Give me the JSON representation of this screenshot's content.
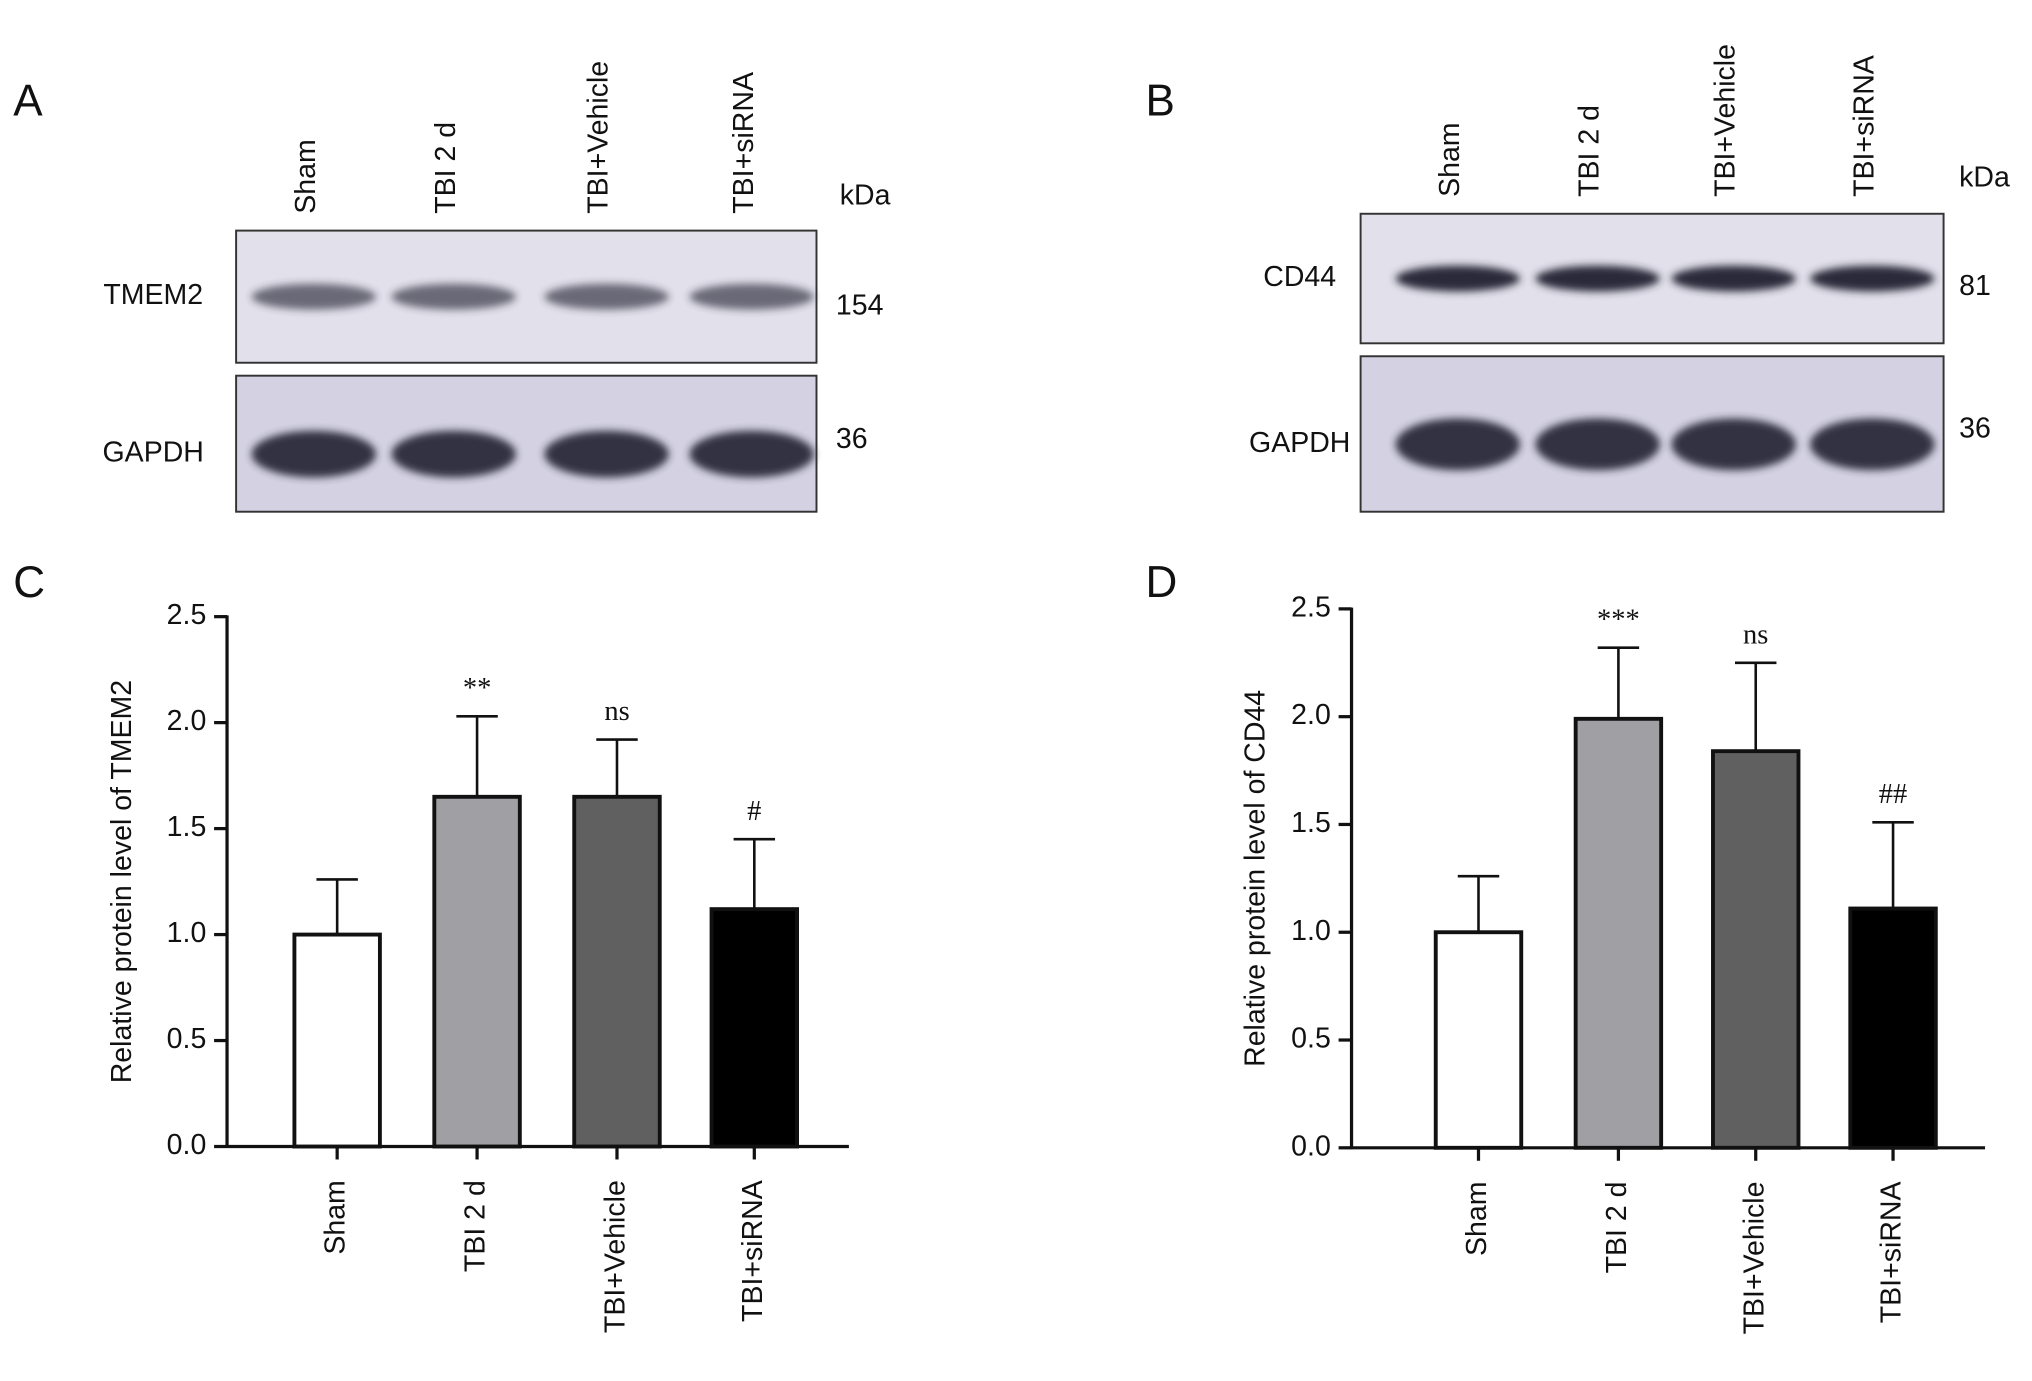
{
  "blots": [
    {
      "panel": "A",
      "lanes": [
        "Sham",
        "TBI 2 d",
        "TBI+Vehicle",
        "TBI+siRNA"
      ],
      "unit": "kDa",
      "rows": [
        {
          "protein": "TMEM2",
          "kda": 154
        },
        {
          "protein": "GAPDH",
          "kda": 36
        }
      ]
    },
    {
      "panel": "B",
      "lanes": [
        "Sham",
        "TBI 2 d",
        "TBI+Vehicle",
        "TBI+siRNA"
      ],
      "unit": "kDa",
      "rows": [
        {
          "protein": "CD44",
          "kda": 81
        },
        {
          "protein": "GAPDH",
          "kda": 36
        }
      ]
    }
  ],
  "chart_data": [
    {
      "type": "bar",
      "panel": "C",
      "ylabel": "Relative protein level of TMEM2",
      "categories": [
        "Sham",
        "TBI 2 d",
        "TBI+Vehicle",
        "TBI+siRNA"
      ],
      "values": [
        1.0,
        1.65,
        1.65,
        1.12
      ],
      "errors": [
        0.26,
        0.38,
        0.27,
        0.33
      ],
      "annotations": [
        null,
        "**",
        "ns",
        "#"
      ],
      "colors": [
        "#ffffff",
        "#a0a0a4",
        "#606060",
        "#000000"
      ],
      "ylim": [
        0,
        2.5
      ],
      "yticks": [
        {
          "value": 0,
          "label": "0.0"
        },
        {
          "value": 0.5,
          "label": "0.5"
        },
        {
          "value": 1,
          "label": "1.0"
        },
        {
          "value": 1.5,
          "label": "1.5"
        },
        {
          "value": 2,
          "label": "2.0"
        },
        {
          "value": 2.5,
          "label": "2.5"
        }
      ]
    },
    {
      "type": "bar",
      "panel": "D",
      "ylabel": "Relative protein level of CD44",
      "categories": [
        "Sham",
        "TBI 2 d",
        "TBI+Vehicle",
        "TBI+siRNA"
      ],
      "values": [
        1.0,
        1.99,
        1.84,
        1.11
      ],
      "errors": [
        0.26,
        0.33,
        0.41,
        0.4
      ],
      "annotations": [
        null,
        "***",
        "ns",
        "##"
      ],
      "colors": [
        "#ffffff",
        "#a0a0a4",
        "#606060",
        "#000000"
      ],
      "ylim": [
        0,
        2.5
      ],
      "yticks": [
        {
          "value": 0,
          "label": "0.0"
        },
        {
          "value": 0.5,
          "label": "0.5"
        },
        {
          "value": 1,
          "label": "1.0"
        },
        {
          "value": 1.5,
          "label": "1.5"
        },
        {
          "value": 2,
          "label": "2.0"
        },
        {
          "value": 2.5,
          "label": "2.5"
        }
      ]
    }
  ]
}
